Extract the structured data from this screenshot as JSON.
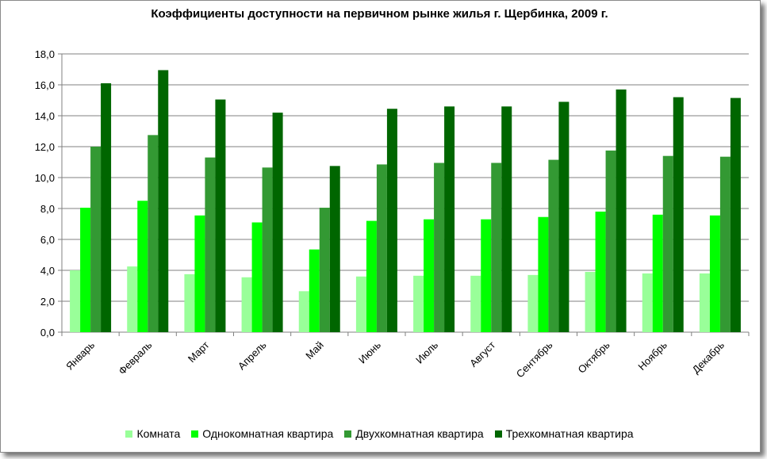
{
  "chart_data": {
    "type": "bar",
    "title": "Коэффициенты доступности на первичном рынке жилья г. Щербинка, 2009 г.",
    "xlabel": "",
    "ylabel": "",
    "ylim": [
      0,
      18
    ],
    "ytick_labels": [
      "0,0",
      "2,0",
      "4,0",
      "6,0",
      "8,0",
      "10,0",
      "12,0",
      "14,0",
      "16,0",
      "18,0"
    ],
    "grid": true,
    "legend_position": "bottom",
    "categories": [
      "Январь",
      "Февраль",
      "Март",
      "Апрель",
      "Май",
      "Июнь",
      "Июль",
      "Август",
      "Сентябрь",
      "Октябрь",
      "Ноябрь",
      "Декабрь"
    ],
    "series": [
      {
        "name": "Комната",
        "color": "#99ff99",
        "values": [
          4.0,
          4.25,
          3.75,
          3.55,
          2.65,
          3.6,
          3.65,
          3.65,
          3.7,
          3.9,
          3.8,
          3.8
        ]
      },
      {
        "name": "Однокомнатная квартира",
        "color": "#00ff00",
        "values": [
          8.05,
          8.5,
          7.55,
          7.1,
          5.35,
          7.2,
          7.3,
          7.3,
          7.45,
          7.8,
          7.6,
          7.55
        ]
      },
      {
        "name": "Двухкомнатная квартира",
        "color": "#339933",
        "values": [
          12.0,
          12.75,
          11.3,
          10.65,
          8.05,
          10.85,
          10.95,
          10.95,
          11.15,
          11.75,
          11.4,
          11.35
        ]
      },
      {
        "name": "Трехкомнатная квартира",
        "color": "#006600",
        "values": [
          16.1,
          16.95,
          15.05,
          14.2,
          10.75,
          14.45,
          14.6,
          14.6,
          14.9,
          15.7,
          15.2,
          15.15
        ]
      }
    ]
  }
}
